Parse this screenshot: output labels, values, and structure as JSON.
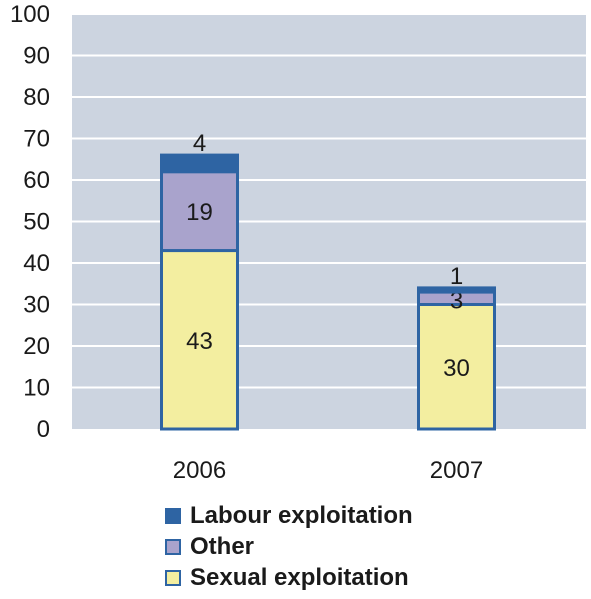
{
  "chart_data": {
    "type": "bar",
    "stacked": true,
    "categories": [
      "2006",
      "2007"
    ],
    "series": [
      {
        "name": "Sexual exploitation",
        "values": [
          43,
          30
        ],
        "color": "#f3eea0"
      },
      {
        "name": "Other",
        "values": [
          19,
          3
        ],
        "color": "#a9a3cc"
      },
      {
        "name": "Labour exploitation",
        "values": [
          4,
          1
        ],
        "color": "#2e64a3"
      }
    ],
    "yticks": [
      0,
      10,
      20,
      30,
      40,
      50,
      60,
      70,
      80,
      90,
      100
    ],
    "ylim": [
      0,
      100
    ],
    "grid": true,
    "legend_position": "bottom",
    "plot_background": "#ccd4e0",
    "bar_border_color": "#2e64a3"
  },
  "legend": {
    "items": [
      {
        "label": "Labour exploitation",
        "color": "#2e64a3"
      },
      {
        "label": "Other",
        "color": "#a9a3cc"
      },
      {
        "label": "Sexual exploitation",
        "color": "#f3eea0"
      }
    ]
  }
}
